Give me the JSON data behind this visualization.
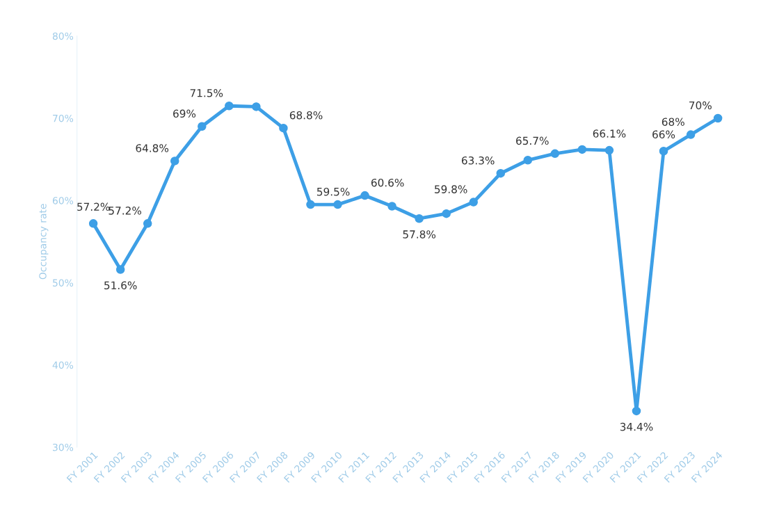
{
  "chart_data": {
    "type": "line",
    "ylabel": "Occupancy rate",
    "categories": [
      "FY 2001",
      "FY 2002",
      "FY 2003",
      "FY 2004",
      "FY 2005",
      "FY 2006",
      "FY 2007",
      "FY 2008",
      "FY 2009",
      "FY 2010",
      "FY 2011",
      "FY 2012",
      "FY 2013",
      "FY 2014",
      "FY 2015",
      "FY 2016",
      "FY 2017",
      "FY 2018",
      "FY 2019",
      "FY 2020",
      "FY 2021",
      "FY 2022",
      "FY 2023",
      "FY 2024"
    ],
    "series": [
      {
        "color": "#3d9fe6",
        "values": [
          57.2,
          51.6,
          57.2,
          64.8,
          69,
          71.5,
          71.4,
          68.8,
          59.5,
          59.5,
          60.6,
          59.3,
          57.8,
          58.4,
          59.8,
          63.3,
          64.9,
          65.7,
          66.2,
          66.1,
          34.4,
          66,
          68,
          70
        ],
        "value_labels": [
          "57.2%",
          "51.6%",
          "57.2%",
          "64.8%",
          "69%",
          "71.5%",
          null,
          "68.8%",
          "59.5%",
          null,
          "60.6%",
          null,
          "57.8%",
          null,
          "59.8%",
          "63.3%",
          null,
          "65.7%",
          null,
          "66.1%",
          "34.4%",
          "66%",
          "68%",
          "70%"
        ]
      }
    ],
    "ylim": [
      30,
      80
    ],
    "yticks": [
      {
        "value": 30,
        "label": "30%"
      },
      {
        "value": 40,
        "label": "40%"
      },
      {
        "value": 50,
        "label": "50%"
      },
      {
        "value": 60,
        "label": "60%"
      },
      {
        "value": 70,
        "label": "70%"
      },
      {
        "value": 80,
        "label": "80%"
      }
    ],
    "marker": "circle",
    "line_style": "solid",
    "grid": false,
    "legend": false
  }
}
